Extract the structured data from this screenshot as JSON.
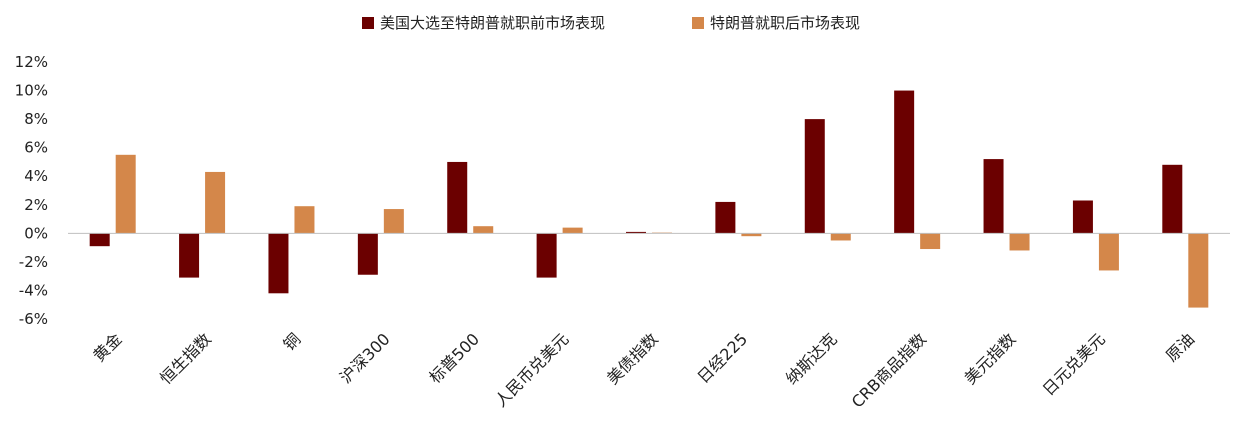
{
  "chart_data": {
    "type": "bar",
    "categories": [
      "黄金",
      "恒生指数",
      "铜",
      "沪深300",
      "标普500",
      "人民币兑美元",
      "美债指数",
      "日经225",
      "纳斯达克",
      "CRB商品指数",
      "美元指数",
      "日元兑美元",
      "原油"
    ],
    "series": [
      {
        "name": "美国大选至特朗普就职前市场表现",
        "color": "#6b0000",
        "values": [
          -0.9,
          -3.1,
          -4.2,
          -2.9,
          5.0,
          -3.1,
          0.1,
          2.2,
          8.0,
          10.0,
          5.2,
          2.3,
          4.8
        ]
      },
      {
        "name": "特朗普就职后市场表现",
        "color": "#d4874a",
        "values": [
          5.5,
          4.3,
          1.9,
          1.7,
          0.5,
          0.4,
          0.05,
          -0.2,
          -0.5,
          -1.1,
          -1.2,
          -2.6,
          -5.2
        ]
      }
    ],
    "ylim": [
      -6,
      12
    ],
    "yticks": [
      12,
      10,
      8,
      6,
      4,
      2,
      0,
      -2,
      -4,
      -6
    ],
    "ytick_labels": [
      "12%",
      "10%",
      "8%",
      "6%",
      "4%",
      "2%",
      "0%",
      "-2%",
      "-4%",
      "-6%"
    ],
    "legend_position": "top-center",
    "grid": false
  }
}
